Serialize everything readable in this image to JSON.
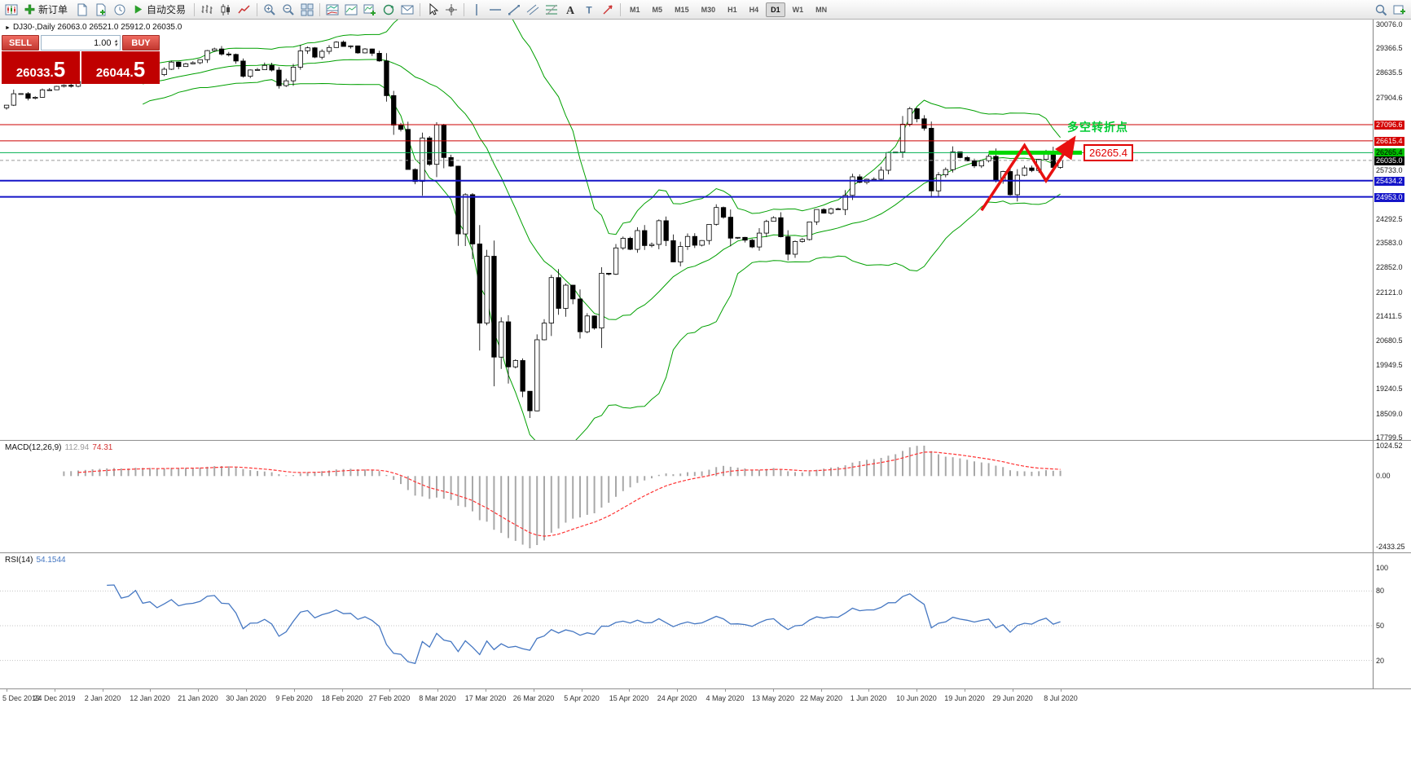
{
  "toolbar": {
    "new_order_label": "新订单",
    "auto_trading_label": "自动交易",
    "timeframes": [
      "M1",
      "M5",
      "M15",
      "M30",
      "H1",
      "H4",
      "D1",
      "W1",
      "MN"
    ],
    "active_timeframe": "D1"
  },
  "trade_widget": {
    "sell_label": "SELL",
    "buy_label": "BUY",
    "volume": "1.00",
    "bid_main": "26033.",
    "bid_big": "5",
    "ask_main": "26044.",
    "ask_big": "5"
  },
  "chart_header": {
    "symbol": "DJ30-,Daily",
    "ohlc": "26063.0 26521.0 25912.0 26035.0"
  },
  "annotations": {
    "turning_point_text": "多空转折点",
    "price_tag": "26265.4"
  },
  "indicators": {
    "macd": {
      "title": "MACD(12,26,9)",
      "value_main": "112.94",
      "value_signal": "74.31",
      "axis_labels": [
        "1024.52",
        "0.00",
        "-2433.25"
      ]
    },
    "rsi": {
      "title": "RSI(14)",
      "value": "54.1544",
      "axis_labels": [
        "100",
        "80",
        "50",
        "20"
      ],
      "levels": [
        80,
        50,
        20
      ]
    }
  },
  "price_axis": {
    "labels": [
      {
        "text": "30076.0",
        "price": 30076.0,
        "style": "plain"
      },
      {
        "text": "29366.5",
        "price": 29366.5,
        "style": "plain"
      },
      {
        "text": "28635.5",
        "price": 28635.5,
        "style": "plain"
      },
      {
        "text": "27904.6",
        "price": 27904.6,
        "style": "plain"
      },
      {
        "text": "27096.6",
        "price": 27096.6,
        "style": "red"
      },
      {
        "text": "26615.4",
        "price": 26615.4,
        "style": "red"
      },
      {
        "text": "26265.4",
        "price": 26265.4,
        "style": "green"
      },
      {
        "text": "26035.0",
        "price": 26035.0,
        "style": "black"
      },
      {
        "text": "25733.0",
        "price": 25733.0,
        "style": "plain"
      },
      {
        "text": "25434.2",
        "price": 25434.2,
        "style": "blue"
      },
      {
        "text": "24953.0",
        "price": 24953.0,
        "style": "blue"
      },
      {
        "text": "24292.5",
        "price": 24292.5,
        "style": "plain"
      },
      {
        "text": "23583.0",
        "price": 23583.0,
        "style": "plain"
      },
      {
        "text": "22852.0",
        "price": 22852.0,
        "style": "plain"
      },
      {
        "text": "22121.0",
        "price": 22121.0,
        "style": "plain"
      },
      {
        "text": "21411.5",
        "price": 21411.5,
        "style": "plain"
      },
      {
        "text": "20680.5",
        "price": 20680.5,
        "style": "plain"
      },
      {
        "text": "19949.5",
        "price": 19949.5,
        "style": "plain"
      },
      {
        "text": "19240.5",
        "price": 19240.5,
        "style": "plain"
      },
      {
        "text": "18509.0",
        "price": 18509.0,
        "style": "plain"
      },
      {
        "text": "17799.5",
        "price": 17799.5,
        "style": "plain"
      }
    ]
  },
  "date_axis": [
    "5 Dec 2019",
    "24 Dec 2019",
    "2 Jan 2020",
    "12 Jan 2020",
    "21 Jan 2020",
    "30 Jan 2020",
    "9 Feb 2020",
    "18 Feb 2020",
    "27 Feb 2020",
    "8 Mar 2020",
    "17 Mar 2020",
    "26 Mar 2020",
    "5 Apr 2020",
    "15 Apr 2020",
    "24 Apr 2020",
    "4 May 2020",
    "13 May 2020",
    "22 May 2020",
    "1 Jun 2020",
    "10 Jun 2020",
    "19 Jun 2020",
    "29 Jun 2020",
    "8 Jul 2020"
  ],
  "chart_data": {
    "type": "candlestick",
    "title": "DJ30-,Daily",
    "y_range": [
      17799.5,
      30076.0
    ],
    "last_candle": {
      "open": 26063.0,
      "high": 26521.0,
      "low": 25912.0,
      "close": 26035.0
    },
    "bollinger": {
      "period": 20,
      "deviation": 2
    },
    "closes": [
      27677,
      28015,
      28020,
      27881,
      27911,
      28132,
      28135,
      28236,
      28267,
      28239,
      28377,
      28455,
      28551,
      28515,
      28621,
      28645,
      28462,
      28538,
      28869,
      28635,
      28703,
      28584,
      28745,
      28957,
      28824,
      28907,
      28939,
      29030,
      29298,
      29348,
      29196,
      29186,
      28989,
      28536,
      28723,
      28734,
      28859,
      28720,
      28256,
      28400,
      28807,
      29290,
      29380,
      29103,
      29277,
      29390,
      29551,
      29423,
      29440,
      29232,
      29348,
      29220,
      28992,
      27961,
      27081,
      26958,
      25767,
      25409,
      26703,
      25917,
      27090,
      26121,
      25865,
      23851,
      25018,
      23553,
      21200,
      23186,
      20189,
      21237,
      19899,
      20087,
      19174,
      18592,
      20705,
      21200,
      22552,
      21637,
      22327,
      21917,
      20944,
      21413,
      21053,
      22680,
      22654,
      23434,
      23719,
      23391,
      23950,
      23504,
      23538,
      24242,
      23650,
      23019,
      23476,
      23776,
      23515,
      23655,
      24134,
      24634,
      24346,
      23724,
      23749,
      23665,
      23465,
      23876,
      24222,
      24332,
      23765,
      23248,
      23625,
      23685,
      24207,
      24576,
      24466,
      24597,
      24575,
      24996,
      25548,
      25383,
      25475,
      25475,
      25743,
      26270,
      26282,
      27111,
      27572,
      27272,
      26990,
      25128,
      25605,
      25763,
      26290,
      26120,
      26022,
      25871,
      26025,
      26156,
      25446,
      25706,
      25016,
      25596,
      25813,
      25735,
      26067,
      26287,
      25827,
      26035
    ],
    "hlines": [
      {
        "price": 27096.6,
        "color": "#cc0000",
        "width": 1,
        "dash": ""
      },
      {
        "price": 26615.4,
        "color": "#cc0000",
        "width": 1,
        "dash": ""
      },
      {
        "price": 26265.4,
        "color": "#00b050",
        "width": 1,
        "dash": ""
      },
      {
        "price": 26035.0,
        "color": "#9a9a9a",
        "width": 1,
        "dash": "4,3"
      },
      {
        "price": 25434.2,
        "color": "#1515c8",
        "width": 2,
        "dash": ""
      },
      {
        "price": 24953.0,
        "color": "#1515c8",
        "width": 2,
        "dash": ""
      }
    ],
    "highlight_bar": {
      "price": 26265.4,
      "x_from_candle": 137,
      "x_to_candle": 150,
      "color": "#00d800"
    },
    "zigzag_arrow": {
      "color": "#e81010",
      "points": [
        {
          "candle": 136,
          "price": 24550
        },
        {
          "candle": 142,
          "price": 26480
        },
        {
          "candle": 145,
          "price": 25430
        },
        {
          "candle": 148.5,
          "price": 26560
        }
      ]
    }
  }
}
